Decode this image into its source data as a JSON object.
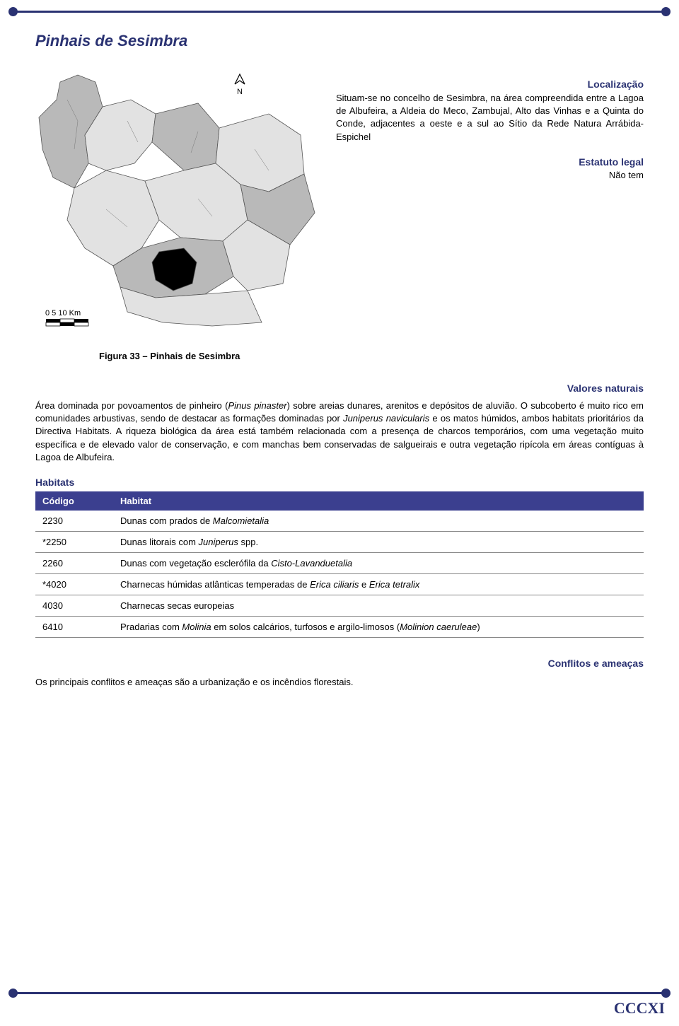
{
  "page_number": "CCCXI",
  "colors": {
    "accent": "#2a3272",
    "table_header_bg": "#3b3f8f",
    "table_header_fg": "#ffffff",
    "row_border": "#888888",
    "background": "#ffffff",
    "map_land": "#b9b9b9",
    "map_light": "#e2e2e2",
    "map_highlight": "#000000"
  },
  "title": "Pinhais de Sesimbra",
  "localizacao": {
    "heading": "Localização",
    "text": "Situam-se no concelho de Sesimbra, na área compreendida entre a Lagoa de Albufeira, a Aldeia do Meco, Zambujal, Alto das Vinhas e a Quinta do Conde, adjacentes a oeste e a sul ao Sítio da Rede Natura Arrábida-Espichel"
  },
  "estatuto": {
    "heading": "Estatuto legal",
    "value": "Não tem"
  },
  "map": {
    "scale_label": "0   5   10  Km",
    "north_symbol": "N"
  },
  "figure_caption": "Figura 33 – Pinhais de Sesimbra",
  "valores": {
    "heading": "Valores naturais",
    "text_pre": "Área dominada por povoamentos de pinheiro (",
    "text_species": "Pinus pinaster",
    "text_mid": ") sobre areias dunares, arenitos e depósitos de aluvião. O subcoberto é muito rico em comunidades arbustivas, sendo de destacar as formações dominadas por ",
    "text_species2": "Juniperus navicularis",
    "text_post": " e os matos húmidos, ambos habitats prioritários da Directiva Habitats. A riqueza biológica da área está também relacionada com a presença de charcos temporários, com uma vegetação muito específica e de elevado valor de conservação, e com manchas bem conservadas de salgueirais e outra vegetação ripícola em áreas contíguas à Lagoa de Albufeira."
  },
  "habitats_heading": "Habitats",
  "habitats_table": {
    "columns": [
      "Código",
      "Habitat"
    ],
    "rows": [
      {
        "code": "2230",
        "habitat_pre": "Dunas com prados de ",
        "habitat_it": "Malcomietalia",
        "habitat_post": ""
      },
      {
        "code": "*2250",
        "habitat_pre": "Dunas litorais com ",
        "habitat_it": "Juniperus",
        "habitat_post": " spp."
      },
      {
        "code": "2260",
        "habitat_pre": "Dunas com vegetação esclerófila da ",
        "habitat_it": "Cisto-Lavanduetalia",
        "habitat_post": ""
      },
      {
        "code": "*4020",
        "habitat_pre": "Charnecas húmidas atlânticas temperadas de ",
        "habitat_it": "Erica ciliaris",
        "habitat_post_mid": " e ",
        "habitat_it2": "Erica tetralix",
        "habitat_post": ""
      },
      {
        "code": "4030",
        "habitat_pre": "Charnecas secas europeias",
        "habitat_it": "",
        "habitat_post": ""
      },
      {
        "code": "6410",
        "habitat_pre": "Pradarias com ",
        "habitat_it": "Molinia",
        "habitat_post_mid": " em solos calcários, turfosos e argilo-limosos (",
        "habitat_it2": "Molinion caeruleae",
        "habitat_post": ")"
      }
    ]
  },
  "conflitos": {
    "heading": "Conflitos e ameaças",
    "text": "Os principais conflitos e ameaças são a urbanização e os incêndios florestais."
  }
}
